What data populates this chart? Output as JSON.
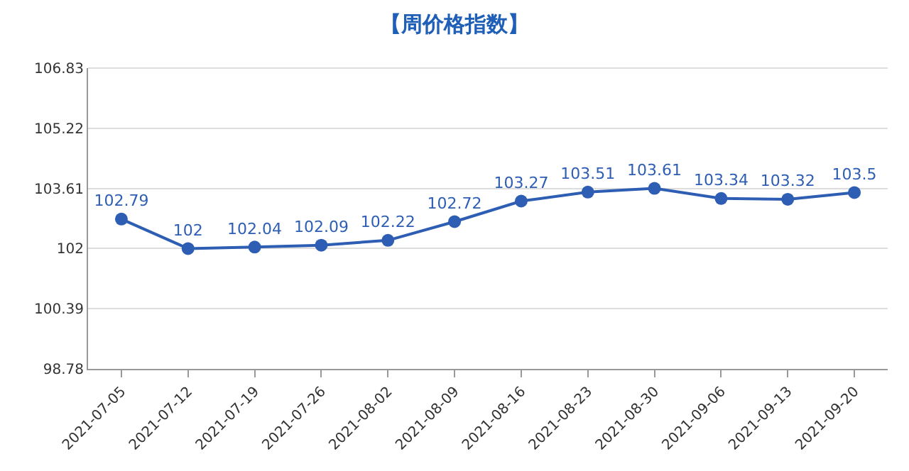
{
  "chart_data": {
    "type": "line",
    "title": "【周价格指数】",
    "categories": [
      "2021-07-05",
      "2021-07-12",
      "2021-07-19",
      "2021-07-26",
      "2021-08-02",
      "2021-08-09",
      "2021-08-16",
      "2021-08-23",
      "2021-08-30",
      "2021-09-06",
      "2021-09-13",
      "2021-09-20"
    ],
    "series": [
      {
        "color": "#2e5eb3",
        "values": [
          102.79,
          102,
          102.04,
          102.09,
          102.22,
          102.72,
          103.27,
          103.51,
          103.61,
          103.34,
          103.32,
          103.5
        ]
      }
    ],
    "ylim": [
      98.78,
      106.83
    ],
    "yticks": [
      98.78,
      100.39,
      102,
      103.61,
      105.22,
      106.83
    ],
    "grid": "y",
    "marker": "circle",
    "line_style": "solid",
    "data_labels": true
  }
}
